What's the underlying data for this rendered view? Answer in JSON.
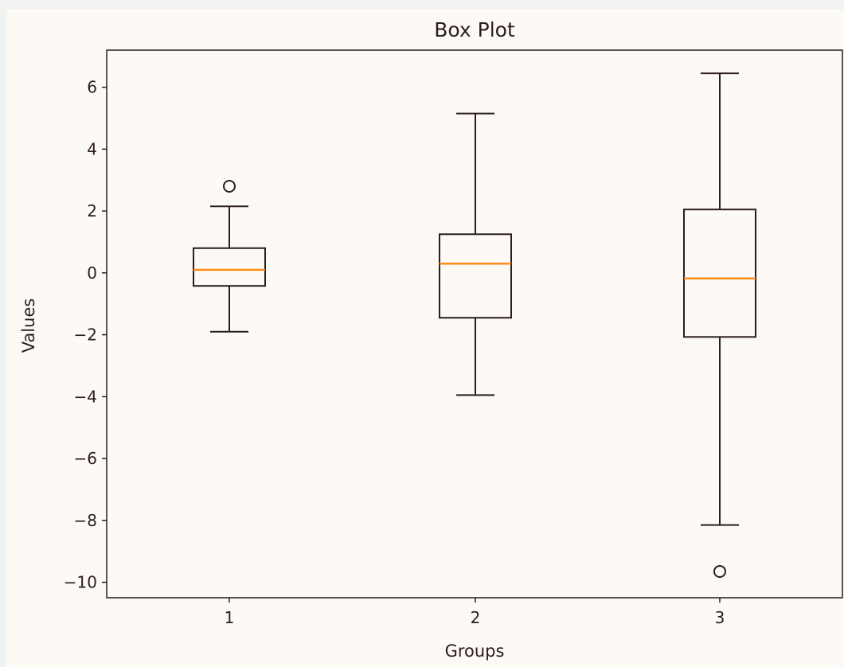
{
  "chart_data": {
    "type": "box",
    "title": "Box Plot",
    "xlabel": "Groups",
    "ylabel": "Values",
    "ylim": [
      -10.5,
      7.2
    ],
    "yticks": [
      6,
      4,
      2,
      0,
      -2,
      -4,
      -6,
      -8,
      -10
    ],
    "ytick_labels": [
      "6",
      "4",
      "2",
      "0",
      "−2",
      "−4",
      "−6",
      "−8",
      "−10"
    ],
    "categories": [
      "1",
      "2",
      "3"
    ],
    "boxes": [
      {
        "label": "1",
        "whisker_low": -1.9,
        "q1": -0.42,
        "median": 0.1,
        "q3": 0.8,
        "whisker_high": 2.15,
        "outliers": [
          2.8
        ]
      },
      {
        "label": "2",
        "whisker_low": -3.95,
        "q1": -1.45,
        "median": 0.3,
        "q3": 1.25,
        "whisker_high": 5.15,
        "outliers": []
      },
      {
        "label": "3",
        "whisker_low": -8.15,
        "q1": -2.07,
        "median": -0.18,
        "q3": 2.05,
        "whisker_high": 6.45,
        "outliers": [
          -9.65
        ]
      }
    ],
    "colors": {
      "box": "#2b1d1d",
      "median": "#ff8c14",
      "background": "#fdf9f5"
    },
    "grid": false,
    "legend": "none"
  }
}
